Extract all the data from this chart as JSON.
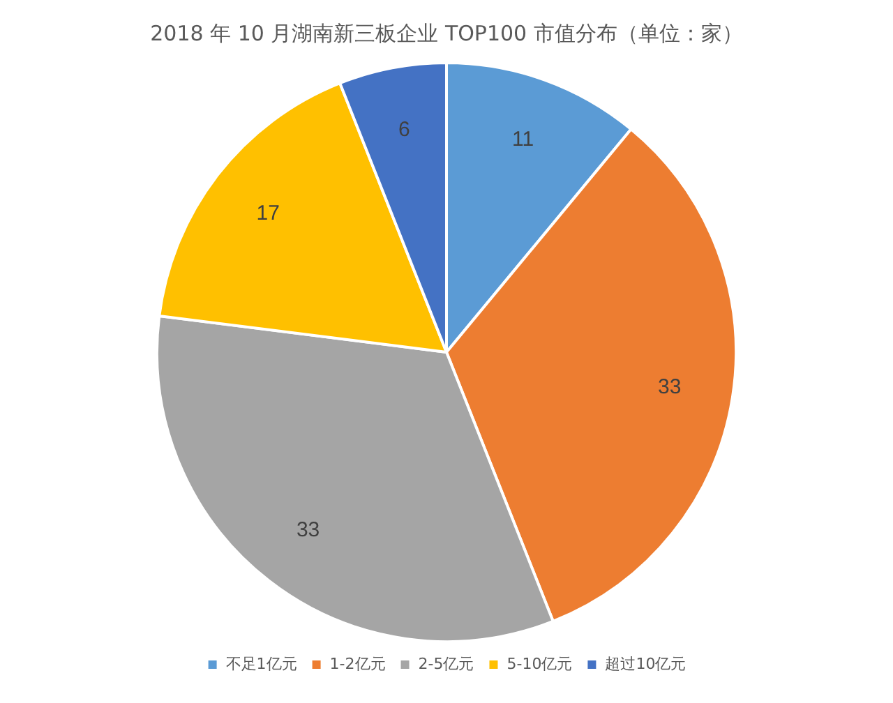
{
  "chart_data": {
    "type": "pie",
    "title": "2018 年 10 月湖南新三板企业 TOP100 市值分布（单位：家）",
    "categories": [
      "不足1亿元",
      "1-2亿元",
      "2-5亿元",
      "5-10亿元",
      "超过10亿元"
    ],
    "values": [
      11,
      33,
      33,
      17,
      6
    ],
    "colors": [
      "#5b9bd5",
      "#ed7d31",
      "#a5a5a5",
      "#ffc000",
      "#4472c4"
    ],
    "data_labels": true,
    "legend": "bottom"
  }
}
